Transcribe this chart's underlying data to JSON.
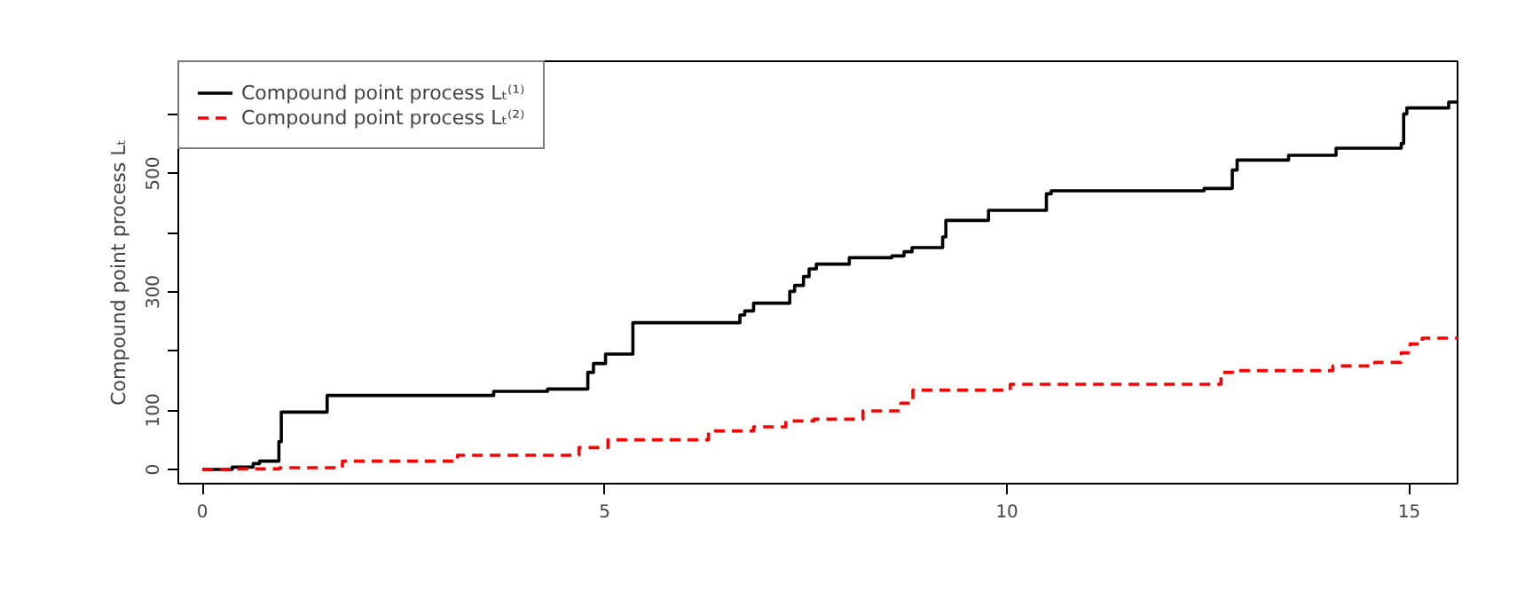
{
  "chart_data": {
    "type": "step",
    "ylabel": "Compound point process Lₜ",
    "xlim": [
      -0.3,
      15.6
    ],
    "ylim": [
      -24,
      690
    ],
    "xticks": [
      0,
      5,
      10,
      15
    ],
    "yticks": [
      0,
      100,
      {
        "value": 200,
        "label": null
      },
      300,
      {
        "value": 400,
        "label": null
      },
      500,
      {
        "value": 600,
        "label": null
      }
    ],
    "grid": false,
    "legend": "top left",
    "marker": "none",
    "series": [
      {
        "name": "Compound point process Lₜ⁽¹⁾",
        "color": "#000000",
        "line_style": "solid",
        "x": [
          0,
          0.37,
          0.63,
          0.71,
          0.95,
          0.98,
          1.55,
          3.62,
          4.29,
          4.79,
          4.86,
          5.01,
          5.35,
          6.68,
          6.74,
          6.85,
          7.3,
          7.36,
          7.47,
          7.54,
          7.63,
          8.04,
          8.57,
          8.72,
          8.82,
          9.2,
          9.24,
          9.77,
          10.49,
          10.55,
          12.45,
          12.8,
          12.86,
          13.5,
          14.09,
          14.9,
          14.93,
          14.97,
          15.49,
          15.6
        ],
        "values": [
          0,
          4,
          10,
          14,
          47,
          97,
          125,
          132,
          136,
          164,
          179,
          195,
          248,
          261,
          268,
          281,
          301,
          311,
          326,
          339,
          347,
          358,
          361,
          368,
          375,
          393,
          421,
          438,
          466,
          471,
          475,
          506,
          523,
          531,
          543,
          551,
          601,
          611,
          621,
          621
        ]
      },
      {
        "name": "Compound point process Lₜ⁽²⁾",
        "color": "#ff0000",
        "line_style": "dashed",
        "x": [
          0,
          0.38,
          0.96,
          1.74,
          3.17,
          4.68,
          5.04,
          6.29,
          6.85,
          7.25,
          7.6,
          8.21,
          8.68,
          8.83,
          10.04,
          12.66,
          12.8,
          14.05,
          14.57,
          14.9,
          15.01,
          15.16,
          15.6
        ],
        "values": [
          0,
          1,
          3,
          14,
          24,
          37,
          50,
          65,
          72,
          82,
          85,
          99,
          112,
          134,
          144,
          164,
          167,
          175,
          181,
          197,
          212,
          222,
          222
        ]
      }
    ]
  }
}
